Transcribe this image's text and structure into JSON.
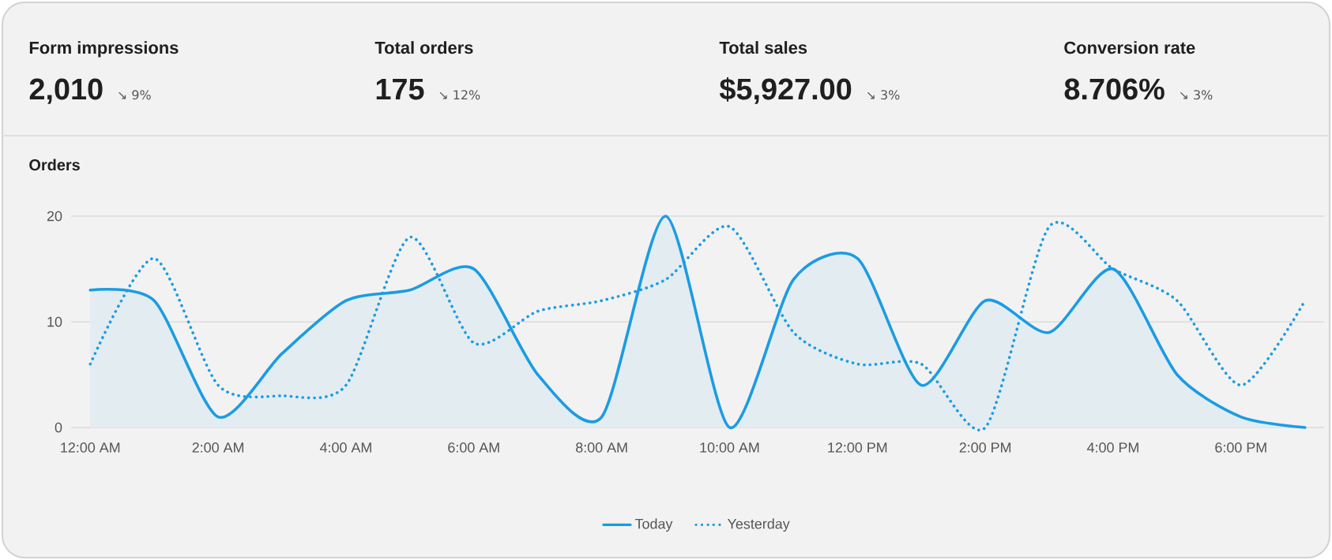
{
  "chart_data": [
    {
      "type": "other",
      "title": "Form impressions",
      "annotations": [
        "2,010",
        "↘ 9%"
      ]
    },
    {
      "type": "other",
      "title": "Total orders",
      "annotations": [
        "175",
        "↘ 12%"
      ]
    },
    {
      "type": "other",
      "title": "Total sales",
      "annotations": [
        "$5,927.00",
        "↘ 3%"
      ]
    },
    {
      "type": "other",
      "title": "Conversion rate",
      "annotations": [
        "8.706%",
        "↘ 3%"
      ]
    },
    {
      "type": "line",
      "title": "Orders",
      "x": [
        0,
        1,
        2,
        3,
        4,
        5,
        6,
        7,
        8,
        9,
        10,
        11,
        12,
        13,
        14,
        15,
        16,
        17,
        18,
        19
      ],
      "series": [
        {
          "name": "Today",
          "type": "area",
          "color": "#1b9ce2",
          "line_style": "solid",
          "values": [
            13,
            12,
            1,
            7,
            12,
            13,
            15,
            5,
            1,
            20,
            0,
            14,
            16,
            4,
            12,
            9,
            15,
            5,
            1,
            0
          ]
        },
        {
          "name": "Yesterday",
          "type": "line",
          "color": "#1b9ce2",
          "line_style": "dotted",
          "values": [
            6,
            16,
            4,
            3,
            4,
            18,
            8,
            11,
            12,
            14,
            19,
            9,
            6,
            6,
            0,
            19,
            15,
            12,
            4,
            12
          ]
        }
      ],
      "xlim": [
        -0.3,
        19.3
      ],
      "ylim": [
        0,
        20
      ],
      "xticks": [
        {
          "value": 0,
          "label": "12:00 AM"
        },
        {
          "value": 2,
          "label": "2:00 AM"
        },
        {
          "value": 4,
          "label": "4:00 AM"
        },
        {
          "value": 6,
          "label": "6:00 AM"
        },
        {
          "value": 8,
          "label": "8:00 AM"
        },
        {
          "value": 10,
          "label": "10:00 AM"
        },
        {
          "value": 12,
          "label": "12:00 PM"
        },
        {
          "value": 14,
          "label": "2:00 PM"
        },
        {
          "value": 16,
          "label": "4:00 PM"
        },
        {
          "value": 18,
          "label": "6:00 PM"
        }
      ],
      "yticks": [
        0,
        10,
        20
      ],
      "grid": "y",
      "legend": "bottom"
    }
  ]
}
